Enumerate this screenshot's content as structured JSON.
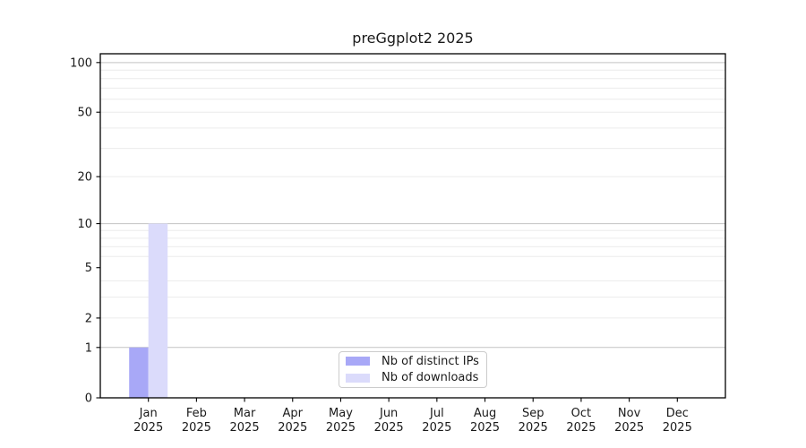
{
  "chart_data": {
    "type": "bar",
    "title": "preGgplot2 2025",
    "categories": [
      "Jan 2025",
      "Feb 2025",
      "Mar 2025",
      "Apr 2025",
      "May 2025",
      "Jun 2025",
      "Jul 2025",
      "Aug 2025",
      "Sep 2025",
      "Oct 2025",
      "Nov 2025",
      "Dec 2025"
    ],
    "series": [
      {
        "name": "Nb of distinct IPs",
        "color": "#a8a8f7",
        "values": [
          1,
          0,
          0,
          0,
          0,
          0,
          0,
          0,
          0,
          0,
          0,
          0
        ]
      },
      {
        "name": "Nb of downloads",
        "color": "#dbdbfb",
        "values": [
          10,
          0,
          0,
          0,
          0,
          0,
          0,
          0,
          0,
          0,
          0,
          0
        ]
      }
    ],
    "y_axis": {
      "scale": "log1p",
      "tick_values": [
        0,
        1,
        2,
        5,
        10,
        20,
        50,
        100
      ],
      "tick_labels": [
        "0",
        "1",
        "2",
        "5",
        "10",
        "20",
        "50",
        "100"
      ],
      "major_grid_values": [
        1,
        10,
        100
      ],
      "minor_grid_values": [
        2,
        3,
        4,
        6,
        7,
        8,
        9,
        20,
        30,
        40,
        50,
        60,
        70,
        80,
        90
      ],
      "ylim": [
        0,
        113
      ]
    },
    "legend": {
      "position": "lower center"
    },
    "grid": true
  },
  "colors": {
    "background": "#ffffff",
    "axis": "#000000",
    "text": "#1a1a1a",
    "major_grid": "#c3c3c3",
    "minor_grid": "#ececec",
    "legend_border": "#cccccc",
    "legend_background": "#ffffff"
  }
}
